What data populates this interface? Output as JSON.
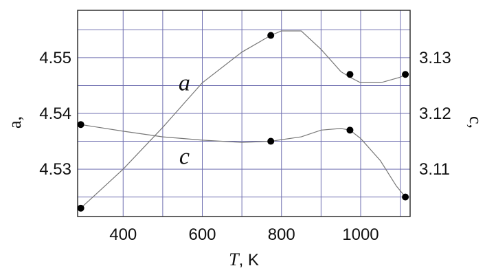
{
  "chart_data": {
    "type": "line",
    "x_axis": {
      "label_var": "T",
      "label_unit": ", K",
      "range": [
        285,
        1125
      ],
      "ticks": [
        400,
        600,
        800,
        1000
      ],
      "tick_labels": [
        "400",
        "600",
        "800",
        "1000"
      ],
      "minor_gridlines": [
        500,
        700,
        900,
        1100
      ]
    },
    "y_left": {
      "label": "a,",
      "range": [
        4.5215,
        4.5585
      ],
      "ticks": [
        4.53,
        4.54,
        4.55
      ],
      "tick_labels": [
        "4.53",
        "4.54",
        "4.55"
      ],
      "gridlines": [
        4.525,
        4.53,
        4.535,
        4.54,
        4.545,
        4.55,
        4.555
      ]
    },
    "y_right": {
      "label": "c,",
      "range": [
        3.1015,
        3.1385
      ],
      "ticks": [
        3.11,
        3.12,
        3.13
      ],
      "tick_labels": [
        "3.11",
        "3.12",
        "3.13"
      ]
    },
    "grid": true,
    "series": [
      {
        "name": "a",
        "axis": "left",
        "points": [
          [
            293,
            4.523
          ],
          [
            773,
            4.554
          ],
          [
            973,
            4.547
          ],
          [
            1113,
            4.547
          ]
        ],
        "curve": [
          [
            293,
            4.523
          ],
          [
            400,
            4.53
          ],
          [
            500,
            4.5375
          ],
          [
            600,
            4.5455
          ],
          [
            700,
            4.551
          ],
          [
            773,
            4.554
          ],
          [
            800,
            4.5548
          ],
          [
            850,
            4.5548
          ],
          [
            900,
            4.5515
          ],
          [
            950,
            4.5475
          ],
          [
            973,
            4.5465
          ],
          [
            1000,
            4.5455
          ],
          [
            1050,
            4.5455
          ],
          [
            1100,
            4.5465
          ],
          [
            1113,
            4.547
          ]
        ]
      },
      {
        "name": "c",
        "axis": "right",
        "points": [
          [
            293,
            3.118
          ],
          [
            773,
            3.115
          ],
          [
            973,
            3.117
          ],
          [
            1113,
            3.105
          ]
        ],
        "curve": [
          [
            293,
            3.118
          ],
          [
            400,
            3.1168
          ],
          [
            500,
            3.1158
          ],
          [
            600,
            3.1152
          ],
          [
            700,
            3.1148
          ],
          [
            773,
            3.115
          ],
          [
            850,
            3.1158
          ],
          [
            900,
            3.117
          ],
          [
            950,
            3.1173
          ],
          [
            973,
            3.117
          ],
          [
            1000,
            3.1155
          ],
          [
            1050,
            3.1115
          ],
          [
            1090,
            3.107
          ],
          [
            1113,
            3.105
          ]
        ]
      }
    ],
    "annotations": [
      {
        "text": "a",
        "x": 815,
        "y_left": 4.5455
      },
      {
        "text": "c",
        "x": 815,
        "y_left": 4.5323
      }
    ]
  }
}
